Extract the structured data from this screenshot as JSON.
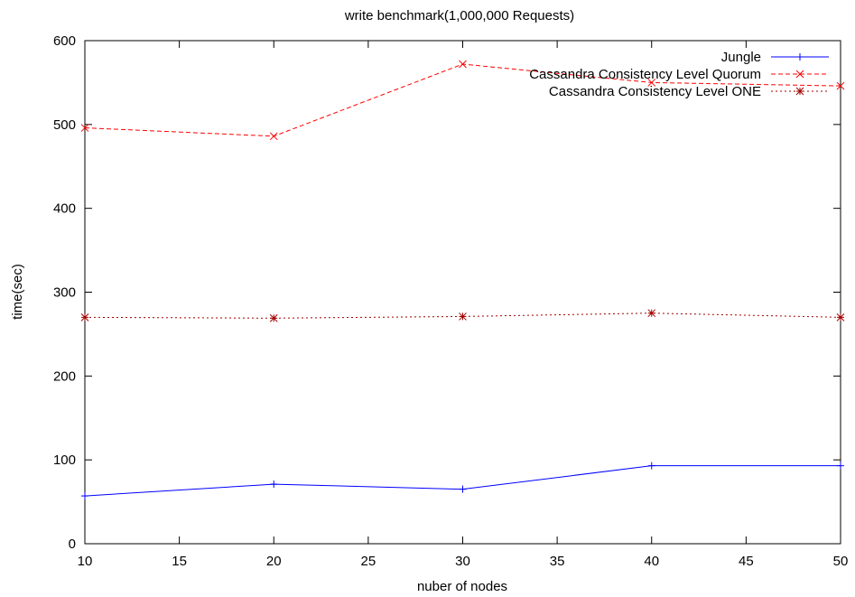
{
  "chart_data": {
    "type": "line",
    "title": "write benchmark(1,000,000 Requests)",
    "xlabel": "nuber of nodes",
    "ylabel": "time(sec)",
    "xlim": [
      10,
      50
    ],
    "ylim": [
      0,
      600
    ],
    "xticks": [
      10,
      15,
      20,
      25,
      30,
      35,
      40,
      45,
      50
    ],
    "yticks": [
      0,
      100,
      200,
      300,
      400,
      500,
      600
    ],
    "grid": false,
    "legend_position": "top-right",
    "x": [
      10,
      20,
      30,
      40,
      50
    ],
    "series": [
      {
        "name": "Jungle",
        "values": [
          57,
          71,
          65,
          93,
          93
        ],
        "color": "#0000ff",
        "line_style": "solid",
        "marker": "plus"
      },
      {
        "name": "Cassandra Consistency Level Quorum",
        "values": [
          496,
          486,
          572,
          550,
          546
        ],
        "color": "#ff0000",
        "line_style": "dashed",
        "marker": "cross"
      },
      {
        "name": "Cassandra Consistency Level ONE",
        "values": [
          270,
          269,
          271,
          275,
          270
        ],
        "color": "#a00000",
        "line_style": "dotted",
        "marker": "star"
      }
    ]
  }
}
